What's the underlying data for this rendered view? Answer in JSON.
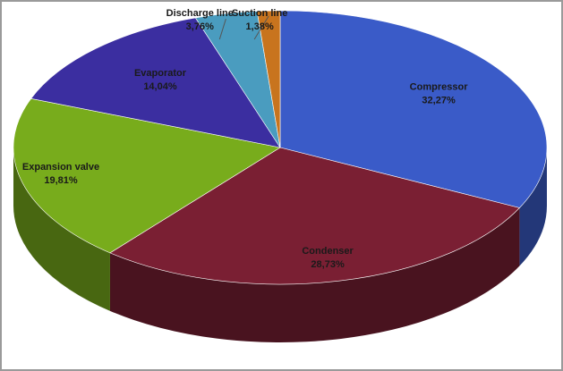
{
  "chart_data": {
    "type": "pie",
    "categories": [
      "Compressor",
      "Condenser",
      "Expansion valve",
      "Evaporator",
      "Discharge line",
      "Suction line"
    ],
    "values": [
      32.27,
      28.73,
      19.81,
      14.04,
      3.76,
      1.38
    ],
    "value_labels": [
      "32,27%",
      "28,73%",
      "19,81%",
      "14,04%",
      "3,76%",
      "1,38%"
    ],
    "colors": [
      "#3a5bc8",
      "#7a1f33",
      "#78ac1c",
      "#3b2ea0",
      "#4a9cbf",
      "#c8741e"
    ]
  }
}
